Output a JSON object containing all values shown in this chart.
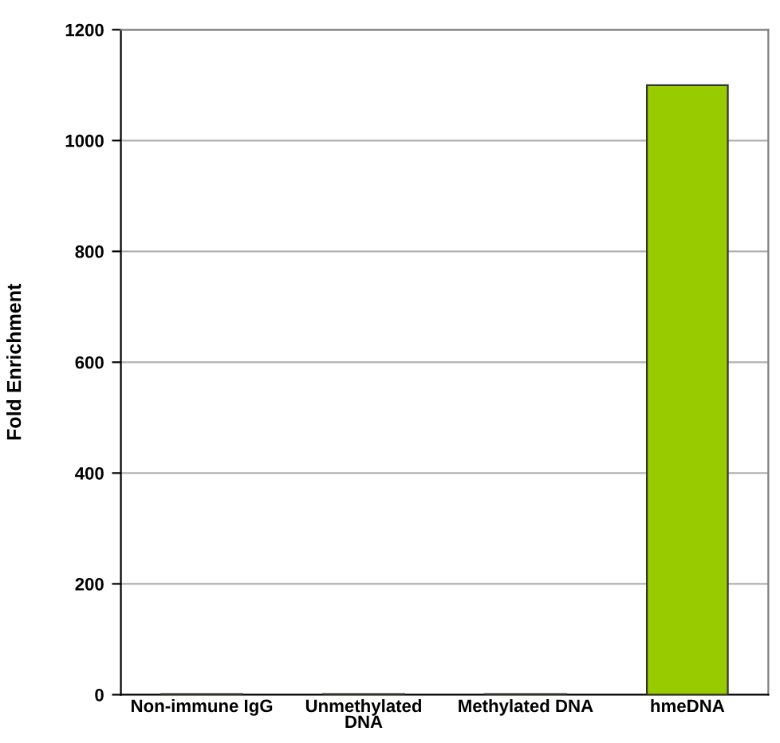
{
  "chart_data": {
    "type": "bar",
    "ylabel": "Fold Enrichment",
    "categories": [
      "Non-immune IgG",
      "Unmethylated\nDNA",
      "Methylated DNA",
      "hmeDNA"
    ],
    "values": [
      1,
      1,
      1,
      1100
    ],
    "color": "#99cc00",
    "ylim": [
      0,
      1200
    ],
    "yticks": [
      0,
      200,
      400,
      600,
      800,
      1000,
      1200
    ],
    "grid": "y"
  }
}
